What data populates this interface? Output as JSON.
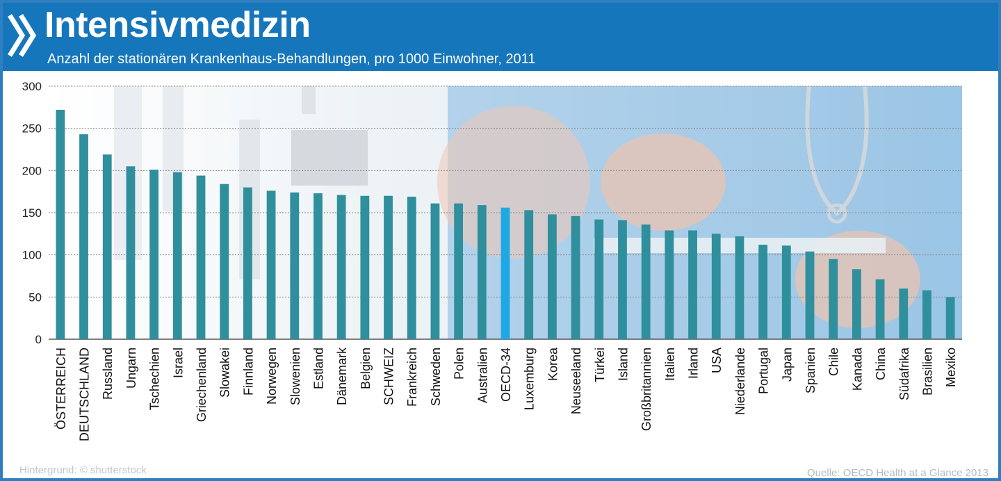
{
  "header": {
    "title": "Intensivmedizin",
    "subtitle": "Anzahl der stationären Krankenhaus-Behandlungen, pro 1000 Einwohner, 2011",
    "brand_icon": "double-chevron-icon"
  },
  "footer": {
    "credit": "Hintergrund: © shutterstock",
    "source": "Quelle: OECD  Health at a Glance 2013"
  },
  "colors": {
    "header_bg": "#1576bc",
    "bar": "#2f8f9d",
    "bar_highlight": "#1ea9e4",
    "grid": "#8a8a8a"
  },
  "chart_data": {
    "type": "bar",
    "title": "Intensivmedizin",
    "subtitle": "Anzahl der stationären Krankenhaus-Behandlungen, pro 1000 Einwohner, 2011",
    "xlabel": "",
    "ylabel": "",
    "ylim": [
      0,
      300
    ],
    "yticks": [
      0,
      50,
      100,
      150,
      200,
      250,
      300
    ],
    "grid": true,
    "highlight": "OECD-34",
    "categories": [
      "ÖSTERREICH",
      "DEUTSCHLAND",
      "Russland",
      "Ungarn",
      "Tschechien",
      "Israel",
      "Griechenland",
      "Slowakei",
      "Finnland",
      "Norwegen",
      "Slowenien",
      "Estland",
      "Dänemark",
      "Belgien",
      "SCHWEIZ",
      "Frankreich",
      "Schweden",
      "Polen",
      "Australien",
      "OECD-34",
      "Luxemburg",
      "Korea",
      "Neuseeland",
      "Türkei",
      "Island",
      "Großbritannien",
      "Italien",
      "Irland",
      "USA",
      "Niederlande",
      "Portugal",
      "Japan",
      "Spanien",
      "Chile",
      "Kanada",
      "China",
      "Südafrika",
      "Brasilien",
      "Mexiko"
    ],
    "values": [
      272,
      243,
      219,
      205,
      201,
      198,
      194,
      184,
      180,
      176,
      174,
      173,
      171,
      170,
      170,
      169,
      161,
      161,
      159,
      156,
      153,
      148,
      146,
      142,
      141,
      136,
      129,
      129,
      125,
      122,
      112,
      111,
      104,
      95,
      83,
      71,
      60,
      58,
      50
    ]
  }
}
